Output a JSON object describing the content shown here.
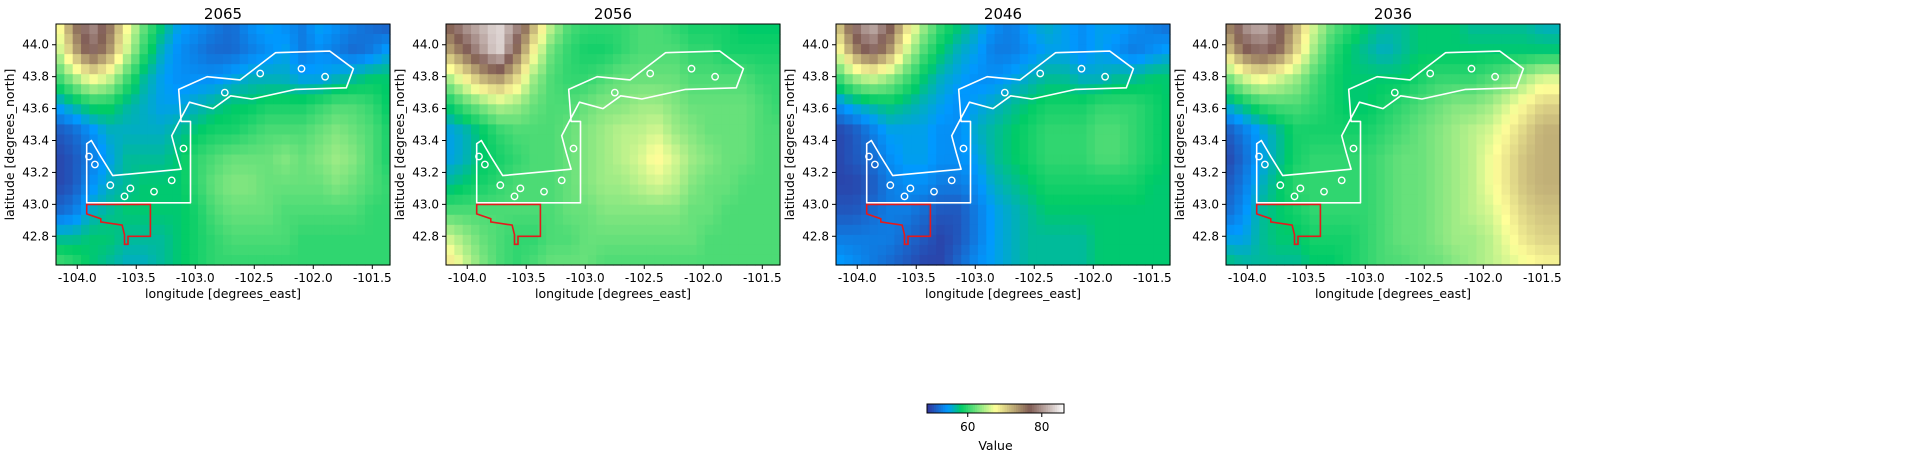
{
  "figure": {
    "colorbar": {
      "label": "Value",
      "ticks": [
        "60",
        "80"
      ],
      "tick_values": [
        60,
        80
      ],
      "vmin": 49,
      "vmax": 86,
      "colormap": "terrain",
      "orientation": "horizontal",
      "placement": "bottom-center"
    }
  },
  "chart_data": [
    {
      "type": "heatmap",
      "title": "2065",
      "xlabel": "longitude [degrees_east]",
      "ylabel": "latitude [degrees_north]",
      "xlim": [
        -104.18,
        -101.35
      ],
      "ylim": [
        42.62,
        44.13
      ],
      "xticks": [
        "-104.0",
        "-103.5",
        "-103.0",
        "-102.5",
        "-102.0",
        "-101.5"
      ],
      "yticks": [
        "42.8",
        "43.0",
        "43.2",
        "43.4",
        "43.6",
        "43.8",
        "44.0"
      ],
      "grid": false,
      "overlays": [
        {
          "name": "white outline",
          "color": "#ffffff"
        },
        {
          "name": "red outline",
          "color": "#e41a1c"
        }
      ],
      "value_field": [
        [
          66,
          75,
          80,
          76,
          68,
          62,
          58,
          55,
          54,
          53,
          52,
          54,
          55,
          54,
          53,
          55,
          54,
          53,
          52,
          51
        ],
        [
          64,
          72,
          78,
          74,
          66,
          60,
          56,
          54,
          53,
          52,
          52,
          53,
          54,
          55,
          53,
          54,
          53,
          52,
          53,
          55
        ],
        [
          60,
          64,
          68,
          66,
          61,
          57,
          55,
          54,
          54,
          54,
          55,
          56,
          56,
          56,
          55,
          55,
          56,
          57,
          58,
          58
        ],
        [
          55,
          57,
          59,
          59,
          57,
          56,
          55,
          55,
          56,
          57,
          58,
          58,
          59,
          59,
          59,
          60,
          61,
          61,
          60,
          58
        ],
        [
          51,
          52,
          54,
          56,
          56,
          56,
          56,
          57,
          58,
          59,
          59,
          60,
          61,
          61,
          61,
          62,
          63,
          62,
          61,
          59
        ],
        [
          50,
          51,
          53,
          55,
          57,
          57,
          57,
          58,
          60,
          61,
          62,
          62,
          62,
          63,
          62,
          63,
          64,
          63,
          61,
          59
        ],
        [
          50,
          51,
          54,
          56,
          57,
          58,
          58,
          58,
          60,
          62,
          63,
          63,
          62,
          62,
          62,
          62,
          63,
          62,
          61,
          60
        ],
        [
          52,
          53,
          56,
          57,
          58,
          58,
          58,
          58,
          59,
          61,
          62,
          62,
          62,
          61,
          61,
          61,
          61,
          61,
          60,
          60
        ],
        [
          57,
          57,
          58,
          58,
          57,
          57,
          57,
          58,
          59,
          60,
          61,
          61,
          61,
          61,
          60,
          60,
          60,
          60,
          60,
          60
        ],
        [
          61,
          60,
          58,
          57,
          56,
          56,
          57,
          58,
          59,
          60,
          60,
          60,
          60,
          60,
          60,
          60,
          60,
          60,
          60,
          60
        ]
      ]
    },
    {
      "type": "heatmap",
      "title": "2056",
      "xlabel": "longitude [degrees_east]",
      "ylabel": "latitude [degrees_north]",
      "xlim": [
        -104.18,
        -101.35
      ],
      "ylim": [
        42.62,
        44.13
      ],
      "xticks": [
        "-104.0",
        "-103.5",
        "-103.0",
        "-102.5",
        "-102.0",
        "-101.5"
      ],
      "yticks": [
        "42.8",
        "43.0",
        "43.2",
        "43.4",
        "43.6",
        "43.8",
        "44.0"
      ],
      "grid": false,
      "overlays": [
        {
          "name": "white outline",
          "color": "#ffffff"
        },
        {
          "name": "red outline",
          "color": "#e41a1c"
        }
      ],
      "value_field": [
        [
          76,
          80,
          82,
          84,
          80,
          72,
          65,
          61,
          60,
          60,
          60,
          61,
          61,
          60,
          59,
          59,
          59,
          58,
          58,
          58
        ],
        [
          72,
          76,
          80,
          84,
          76,
          68,
          62,
          60,
          59,
          59,
          60,
          61,
          61,
          61,
          60,
          60,
          59,
          59,
          59,
          59
        ],
        [
          64,
          68,
          72,
          74,
          70,
          64,
          61,
          60,
          60,
          61,
          62,
          62,
          62,
          62,
          61,
          61,
          61,
          61,
          60,
          60
        ],
        [
          58,
          61,
          63,
          65,
          64,
          62,
          61,
          61,
          62,
          63,
          63,
          64,
          64,
          63,
          62,
          62,
          62,
          62,
          61,
          60
        ],
        [
          55,
          56,
          58,
          60,
          61,
          61,
          61,
          62,
          63,
          64,
          65,
          65,
          66,
          64,
          63,
          62,
          62,
          62,
          61,
          61
        ],
        [
          55,
          56,
          58,
          59,
          60,
          61,
          61,
          62,
          63,
          64,
          65,
          66,
          68,
          66,
          64,
          63,
          62,
          62,
          61,
          61
        ],
        [
          57,
          58,
          59,
          60,
          61,
          61,
          61,
          62,
          63,
          64,
          64,
          65,
          66,
          65,
          63,
          62,
          62,
          61,
          61,
          61
        ],
        [
          61,
          61,
          61,
          61,
          61,
          61,
          61,
          62,
          62,
          63,
          63,
          63,
          63,
          63,
          62,
          62,
          61,
          61,
          61,
          61
        ],
        [
          66,
          64,
          62,
          61,
          60,
          60,
          61,
          61,
          62,
          62,
          62,
          62,
          62,
          62,
          62,
          61,
          61,
          61,
          61,
          61
        ],
        [
          70,
          66,
          63,
          61,
          60,
          61,
          62,
          62,
          62,
          61,
          61,
          61,
          61,
          61,
          61,
          61,
          61,
          61,
          61,
          61
        ]
      ]
    },
    {
      "type": "heatmap",
      "title": "2046",
      "xlabel": "longitude [degrees_east]",
      "ylabel": "latitude [degrees_north]",
      "xlim": [
        -104.18,
        -101.35
      ],
      "ylim": [
        42.62,
        44.13
      ],
      "xticks": [
        "-104.0",
        "-103.5",
        "-103.0",
        "-102.5",
        "-102.0",
        "-101.5"
      ],
      "yticks": [
        "42.8",
        "43.0",
        "43.2",
        "43.4",
        "43.6",
        "43.8",
        "44.0"
      ],
      "grid": false,
      "overlays": [
        {
          "name": "white outline",
          "color": "#ffffff"
        },
        {
          "name": "red outline",
          "color": "#e41a1c"
        }
      ],
      "value_field": [
        [
          70,
          78,
          82,
          78,
          70,
          64,
          60,
          58,
          56,
          54,
          53,
          55,
          56,
          55,
          54,
          55,
          55,
          54,
          53,
          52
        ],
        [
          66,
          74,
          78,
          74,
          66,
          61,
          58,
          56,
          55,
          53,
          53,
          54,
          55,
          55,
          54,
          55,
          54,
          53,
          54,
          55
        ],
        [
          60,
          64,
          66,
          64,
          61,
          58,
          56,
          55,
          54,
          54,
          55,
          56,
          57,
          57,
          56,
          56,
          57,
          57,
          58,
          58
        ],
        [
          54,
          56,
          57,
          58,
          57,
          56,
          55,
          54,
          55,
          56,
          57,
          58,
          59,
          59,
          59,
          60,
          60,
          60,
          59,
          58
        ],
        [
          50,
          51,
          53,
          55,
          55,
          55,
          54,
          54,
          56,
          57,
          58,
          59,
          60,
          60,
          60,
          61,
          61,
          60,
          59,
          58
        ],
        [
          50,
          51,
          52,
          54,
          55,
          55,
          54,
          54,
          55,
          57,
          58,
          59,
          60,
          60,
          60,
          61,
          61,
          60,
          59,
          58
        ],
        [
          50,
          50,
          51,
          53,
          54,
          54,
          53,
          53,
          54,
          56,
          57,
          58,
          59,
          59,
          59,
          59,
          59,
          59,
          58,
          58
        ],
        [
          51,
          51,
          52,
          53,
          53,
          52,
          51,
          51,
          53,
          55,
          56,
          57,
          58,
          58,
          58,
          58,
          58,
          58,
          58,
          58
        ],
        [
          53,
          53,
          53,
          53,
          52,
          51,
          50,
          51,
          53,
          55,
          56,
          57,
          57,
          57,
          57,
          58,
          58,
          58,
          58,
          58
        ],
        [
          55,
          54,
          53,
          52,
          51,
          50,
          50,
          52,
          54,
          55,
          56,
          57,
          57,
          57,
          57,
          58,
          58,
          58,
          58,
          58
        ]
      ]
    },
    {
      "type": "heatmap",
      "title": "2036",
      "xlabel": "longitude [degrees_east]",
      "ylabel": "latitude [degrees_north]",
      "xlim": [
        -104.18,
        -101.35
      ],
      "ylim": [
        42.62,
        44.13
      ],
      "xticks": [
        "-104.0",
        "-103.5",
        "-103.0",
        "-102.5",
        "-102.0",
        "-101.5"
      ],
      "yticks": [
        "42.8",
        "43.0",
        "43.2",
        "43.4",
        "43.6",
        "43.8",
        "44.0"
      ],
      "grid": false,
      "overlays": [
        {
          "name": "white outline",
          "color": "#ffffff"
        },
        {
          "name": "red outline",
          "color": "#e41a1c"
        }
      ],
      "value_field": [
        [
          74,
          80,
          82,
          78,
          72,
          66,
          62,
          60,
          58,
          57,
          57,
          58,
          58,
          58,
          57,
          57,
          57,
          57,
          56,
          56
        ],
        [
          70,
          76,
          78,
          76,
          70,
          64,
          60,
          58,
          57,
          56,
          57,
          58,
          58,
          58,
          58,
          58,
          58,
          58,
          58,
          58
        ],
        [
          62,
          66,
          68,
          66,
          64,
          61,
          59,
          58,
          58,
          58,
          58,
          59,
          60,
          60,
          60,
          61,
          62,
          64,
          66,
          66
        ],
        [
          56,
          58,
          60,
          61,
          61,
          60,
          59,
          58,
          58,
          59,
          60,
          61,
          62,
          63,
          63,
          64,
          66,
          68,
          70,
          70
        ],
        [
          51,
          53,
          55,
          57,
          59,
          59,
          59,
          59,
          59,
          60,
          61,
          62,
          63,
          64,
          65,
          66,
          68,
          70,
          72,
          72
        ],
        [
          50,
          52,
          55,
          57,
          59,
          60,
          60,
          60,
          60,
          61,
          62,
          62,
          63,
          64,
          65,
          67,
          69,
          71,
          72,
          72
        ],
        [
          51,
          53,
          56,
          58,
          60,
          60,
          60,
          60,
          60,
          61,
          62,
          62,
          63,
          64,
          65,
          67,
          69,
          71,
          72,
          72
        ],
        [
          52,
          54,
          57,
          58,
          59,
          60,
          60,
          60,
          60,
          61,
          62,
          62,
          63,
          64,
          65,
          66,
          68,
          70,
          71,
          71
        ],
        [
          55,
          55,
          57,
          58,
          58,
          59,
          59,
          59,
          60,
          61,
          62,
          62,
          63,
          64,
          64,
          65,
          67,
          69,
          70,
          70
        ],
        [
          58,
          57,
          57,
          57,
          57,
          58,
          58,
          59,
          60,
          61,
          61,
          62,
          62,
          63,
          64,
          65,
          66,
          67,
          68,
          68
        ]
      ]
    }
  ]
}
